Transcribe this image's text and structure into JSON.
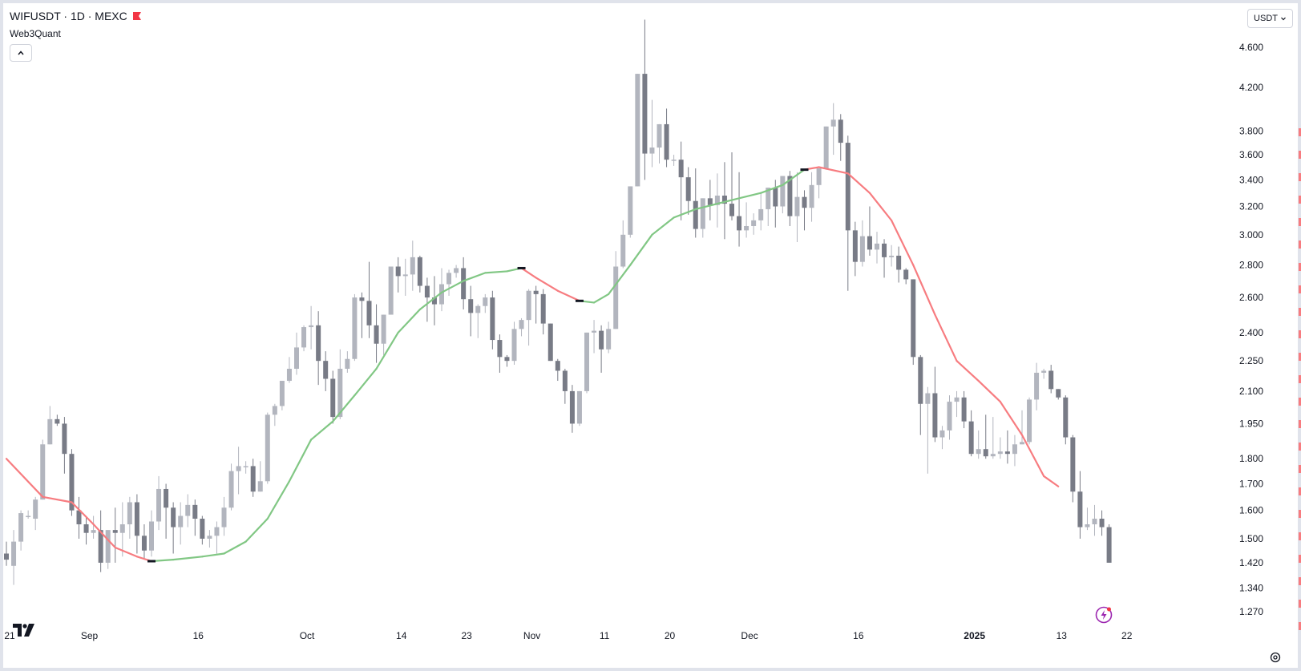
{
  "header": {
    "symbol": "WIFUSDT · 1D · MEXC",
    "indicator": "Web3Quant",
    "currency": "USDT"
  },
  "colors": {
    "up_candle": "#b2b5be",
    "down_candle": "#787b86",
    "ma_up": "#81c784",
    "ma_down": "#f77c80",
    "flag": "#f23645",
    "bolt": "#e040fb"
  },
  "icons": [
    "flag-icon",
    "chevron-up-icon",
    "chevron-down-icon",
    "tradingview-logo-icon",
    "lightning-icon",
    "settings-icon"
  ],
  "chart_data": {
    "type": "candlestick",
    "scale": "log",
    "ylim": [
      1.22,
      5.0
    ],
    "price_ticks": [
      "4.600",
      "4.200",
      "3.800",
      "3.600",
      "3.400",
      "3.200",
      "3.000",
      "2.800",
      "2.600",
      "2.400",
      "2.250",
      "2.100",
      "1.950",
      "1.800",
      "1.700",
      "1.600",
      "1.500",
      "1.420",
      "1.340",
      "1.270"
    ],
    "time_ticks": [
      {
        "label": "21",
        "day": 0
      },
      {
        "label": "Sep",
        "day": 11
      },
      {
        "label": "16",
        "day": 26
      },
      {
        "label": "Oct",
        "day": 41
      },
      {
        "label": "14",
        "day": 54
      },
      {
        "label": "23",
        "day": 63
      },
      {
        "label": "Nov",
        "day": 72
      },
      {
        "label": "11",
        "day": 82
      },
      {
        "label": "20",
        "day": 91
      },
      {
        "label": "Dec",
        "day": 102
      },
      {
        "label": "16",
        "day": 117
      },
      {
        "label": "2025",
        "day": 133,
        "bold": true
      },
      {
        "label": "13",
        "day": 145
      },
      {
        "label": "22",
        "day": 154
      }
    ],
    "candles": [
      [
        1.45,
        1.49,
        1.43,
        1.41
      ],
      [
        1.41,
        1.53,
        1.49,
        1.35
      ],
      [
        1.49,
        1.6,
        1.59,
        1.46
      ],
      [
        1.58,
        1.6,
        1.58,
        1.57
      ],
      [
        1.57,
        1.65,
        1.64,
        1.53
      ],
      [
        1.64,
        1.88,
        1.86,
        1.64
      ],
      [
        1.86,
        2.03,
        1.97,
        1.86
      ],
      [
        1.97,
        1.99,
        1.95,
        1.94
      ],
      [
        1.95,
        1.98,
        1.82,
        1.74
      ],
      [
        1.82,
        1.84,
        1.6,
        1.58
      ],
      [
        1.6,
        1.65,
        1.55,
        1.5
      ],
      [
        1.55,
        1.58,
        1.52,
        1.48
      ],
      [
        1.52,
        1.58,
        1.53,
        1.5
      ],
      [
        1.53,
        1.6,
        1.42,
        1.39
      ],
      [
        1.42,
        1.5,
        1.53,
        1.4
      ],
      [
        1.53,
        1.61,
        1.52,
        1.42
      ],
      [
        1.52,
        1.63,
        1.55,
        1.44
      ],
      [
        1.55,
        1.65,
        1.63,
        1.5
      ],
      [
        1.63,
        1.66,
        1.51,
        1.45
      ],
      [
        1.51,
        1.55,
        1.46,
        1.43
      ],
      [
        1.46,
        1.6,
        1.56,
        1.44
      ],
      [
        1.56,
        1.73,
        1.68,
        1.53
      ],
      [
        1.68,
        1.7,
        1.61,
        1.5
      ],
      [
        1.61,
        1.63,
        1.54,
        1.45
      ],
      [
        1.54,
        1.63,
        1.58,
        1.48
      ],
      [
        1.58,
        1.66,
        1.62,
        1.54
      ],
      [
        1.62,
        1.64,
        1.57,
        1.51
      ],
      [
        1.57,
        1.58,
        1.5,
        1.48
      ],
      [
        1.5,
        1.53,
        1.51,
        1.47
      ],
      [
        1.51,
        1.56,
        1.54,
        1.45
      ],
      [
        1.54,
        1.65,
        1.61,
        1.51
      ],
      [
        1.61,
        1.78,
        1.75,
        1.6
      ],
      [
        1.75,
        1.85,
        1.77,
        1.66
      ],
      [
        1.77,
        1.79,
        1.77,
        1.74
      ],
      [
        1.77,
        1.8,
        1.67,
        1.65
      ],
      [
        1.67,
        1.79,
        1.71,
        1.67
      ],
      [
        1.71,
        2.0,
        1.99,
        1.7
      ],
      [
        1.99,
        2.04,
        2.03,
        1.94
      ],
      [
        2.03,
        2.14,
        2.15,
        2.01
      ],
      [
        2.15,
        2.27,
        2.21,
        2.14
      ],
      [
        2.21,
        2.4,
        2.32,
        2.18
      ],
      [
        2.32,
        2.44,
        2.43,
        2.3
      ],
      [
        2.43,
        2.55,
        2.44,
        2.31
      ],
      [
        2.44,
        2.52,
        2.25,
        2.13
      ],
      [
        2.25,
        2.3,
        2.16,
        2.1
      ],
      [
        2.16,
        2.2,
        1.98,
        1.95
      ],
      [
        1.98,
        2.31,
        2.21,
        1.97
      ],
      [
        2.21,
        2.3,
        2.26,
        2.19
      ],
      [
        2.26,
        2.62,
        2.6,
        2.25
      ],
      [
        2.6,
        2.63,
        2.58,
        2.37
      ],
      [
        2.58,
        2.82,
        2.44,
        2.37
      ],
      [
        2.44,
        2.56,
        2.34,
        2.24
      ],
      [
        2.34,
        2.5,
        2.5,
        2.28
      ],
      [
        2.5,
        2.78,
        2.79,
        2.5
      ],
      [
        2.79,
        2.85,
        2.73,
        2.63
      ],
      [
        2.73,
        2.84,
        2.74,
        2.61
      ],
      [
        2.74,
        2.96,
        2.85,
        2.64
      ],
      [
        2.85,
        2.86,
        2.67,
        2.63
      ],
      [
        2.67,
        2.72,
        2.6,
        2.46
      ],
      [
        2.6,
        2.73,
        2.56,
        2.44
      ],
      [
        2.56,
        2.78,
        2.68,
        2.52
      ],
      [
        2.68,
        2.77,
        2.75,
        2.61
      ],
      [
        2.75,
        2.8,
        2.78,
        2.72
      ],
      [
        2.78,
        2.85,
        2.59,
        2.53
      ],
      [
        2.59,
        2.67,
        2.51,
        2.38
      ],
      [
        2.51,
        2.56,
        2.55,
        2.37
      ],
      [
        2.55,
        2.62,
        2.6,
        2.51
      ],
      [
        2.6,
        2.64,
        2.36,
        2.31
      ],
      [
        2.36,
        2.39,
        2.27,
        2.19
      ],
      [
        2.27,
        2.28,
        2.25,
        2.22
      ],
      [
        2.25,
        2.46,
        2.42,
        2.23
      ],
      [
        2.42,
        2.48,
        2.47,
        2.38
      ],
      [
        2.47,
        2.65,
        2.64,
        2.33
      ],
      [
        2.64,
        2.67,
        2.62,
        2.45
      ],
      [
        2.62,
        2.65,
        2.45,
        2.39
      ],
      [
        2.45,
        2.4,
        2.25,
        2.25
      ],
      [
        2.25,
        2.26,
        2.2,
        2.15
      ],
      [
        2.2,
        2.21,
        2.1,
        2.04
      ],
      [
        2.1,
        2.13,
        1.95,
        1.91
      ],
      [
        1.95,
        2.1,
        2.1,
        1.94
      ],
      [
        2.1,
        2.4,
        2.4,
        2.09
      ],
      [
        2.4,
        2.47,
        2.41,
        2.29
      ],
      [
        2.41,
        2.44,
        2.31,
        2.19
      ],
      [
        2.31,
        2.46,
        2.42,
        2.29
      ],
      [
        2.42,
        2.89,
        2.79,
        2.42
      ],
      [
        2.79,
        3.1,
        3.0,
        2.78
      ],
      [
        3.0,
        3.22,
        3.35,
        2.98
      ],
      [
        3.35,
        4.28,
        4.33,
        3.35
      ],
      [
        4.33,
        4.9,
        3.61,
        3.4
      ],
      [
        3.61,
        4.08,
        3.66,
        3.5
      ],
      [
        3.66,
        3.8,
        3.86,
        3.53
      ],
      [
        3.86,
        4.0,
        3.56,
        3.5
      ],
      [
        3.56,
        3.6,
        3.56,
        3.51
      ],
      [
        3.56,
        3.71,
        3.42,
        3.1
      ],
      [
        3.42,
        3.5,
        3.24,
        3.14
      ],
      [
        3.24,
        3.49,
        3.04,
        2.98
      ],
      [
        3.04,
        3.12,
        3.26,
        2.98
      ],
      [
        3.26,
        3.4,
        3.21,
        3.1
      ],
      [
        3.21,
        3.45,
        3.28,
        3.05
      ],
      [
        3.28,
        3.54,
        3.22,
        2.97
      ],
      [
        3.22,
        3.62,
        3.13,
        3.1
      ],
      [
        3.13,
        3.46,
        3.03,
        2.92
      ],
      [
        3.03,
        3.23,
        3.06,
        2.98
      ],
      [
        3.06,
        3.15,
        3.1,
        3.0
      ],
      [
        3.1,
        3.3,
        3.18,
        3.03
      ],
      [
        3.18,
        3.3,
        3.34,
        3.06
      ],
      [
        3.34,
        3.4,
        3.2,
        3.05
      ],
      [
        3.2,
        3.43,
        3.43,
        3.15
      ],
      [
        3.43,
        3.47,
        3.13,
        3.06
      ],
      [
        3.13,
        3.46,
        3.27,
        2.95
      ],
      [
        3.27,
        3.32,
        3.19,
        3.03
      ],
      [
        3.19,
        3.46,
        3.36,
        3.09
      ],
      [
        3.36,
        3.4,
        3.49,
        3.26
      ],
      [
        3.49,
        3.76,
        3.84,
        3.48
      ],
      [
        3.84,
        4.05,
        3.9,
        3.6
      ],
      [
        3.9,
        3.95,
        3.7,
        3.55
      ],
      [
        3.7,
        3.76,
        3.03,
        2.64
      ],
      [
        3.03,
        3.09,
        2.82,
        2.73
      ],
      [
        2.82,
        3.1,
        2.99,
        2.79
      ],
      [
        2.99,
        3.2,
        2.9,
        2.86
      ],
      [
        2.9,
        3.02,
        2.94,
        2.81
      ],
      [
        2.94,
        2.97,
        2.85,
        2.72
      ],
      [
        2.85,
        2.93,
        2.86,
        2.79
      ],
      [
        2.86,
        2.92,
        2.77,
        2.69
      ],
      [
        2.77,
        2.78,
        2.71,
        2.68
      ],
      [
        2.71,
        2.7,
        2.27,
        2.23
      ],
      [
        2.27,
        2.28,
        2.04,
        1.9
      ],
      [
        2.04,
        2.12,
        2.09,
        1.74
      ],
      [
        2.09,
        2.22,
        1.89,
        1.87
      ],
      [
        1.89,
        1.94,
        1.92,
        1.84
      ],
      [
        1.92,
        2.08,
        2.05,
        1.88
      ],
      [
        2.05,
        2.1,
        2.07,
        1.98
      ],
      [
        2.07,
        2.1,
        1.96,
        1.93
      ],
      [
        1.96,
        2.01,
        1.82,
        1.81
      ],
      [
        1.82,
        1.92,
        1.84,
        1.8
      ],
      [
        1.84,
        1.99,
        1.81,
        1.8
      ],
      [
        1.81,
        1.98,
        1.82,
        1.8
      ],
      [
        1.82,
        1.89,
        1.83,
        1.8
      ],
      [
        1.83,
        1.92,
        1.82,
        1.78
      ],
      [
        1.82,
        1.9,
        1.86,
        1.77
      ],
      [
        1.86,
        2.01,
        1.87,
        1.86
      ],
      [
        1.87,
        2.07,
        2.06,
        1.86
      ],
      [
        2.06,
        2.24,
        2.19,
        2.01
      ],
      [
        2.19,
        2.21,
        2.2,
        2.16
      ],
      [
        2.2,
        2.23,
        2.11,
        2.09
      ],
      [
        2.11,
        2.11,
        2.07,
        2.06
      ],
      [
        2.07,
        2.08,
        1.89,
        1.86
      ],
      [
        1.89,
        1.9,
        1.67,
        1.63
      ],
      [
        1.67,
        1.75,
        1.54,
        1.5
      ],
      [
        1.54,
        1.61,
        1.55,
        1.53
      ],
      [
        1.55,
        1.62,
        1.57,
        1.51
      ],
      [
        1.57,
        1.6,
        1.54,
        1.51
      ],
      [
        1.54,
        1.55,
        1.42,
        1.42
      ]
    ],
    "ma": [
      [
        0,
        1.8,
        "down"
      ],
      [
        5,
        1.65,
        "down"
      ],
      [
        9,
        1.63,
        "down"
      ],
      [
        12,
        1.55,
        "down"
      ],
      [
        15,
        1.47,
        "down"
      ],
      [
        18,
        1.44,
        "down"
      ],
      [
        20,
        1.425,
        "down"
      ],
      [
        23,
        1.43,
        "up"
      ],
      [
        27,
        1.44,
        "up"
      ],
      [
        30,
        1.45,
        "up"
      ],
      [
        33,
        1.49,
        "up"
      ],
      [
        36,
        1.57,
        "up"
      ],
      [
        39,
        1.71,
        "up"
      ],
      [
        42,
        1.88,
        "up"
      ],
      [
        45,
        1.96,
        "up"
      ],
      [
        48,
        2.08,
        "up"
      ],
      [
        51,
        2.21,
        "up"
      ],
      [
        54,
        2.4,
        "up"
      ],
      [
        57,
        2.53,
        "up"
      ],
      [
        60,
        2.63,
        "up"
      ],
      [
        63,
        2.7,
        "up"
      ],
      [
        66,
        2.75,
        "up"
      ],
      [
        69,
        2.76,
        "up"
      ],
      [
        71,
        2.78,
        "up"
      ],
      [
        73,
        2.72,
        "down"
      ],
      [
        76,
        2.64,
        "down"
      ],
      [
        79,
        2.58,
        "down"
      ],
      [
        81,
        2.57,
        "up"
      ],
      [
        83,
        2.62,
        "up"
      ],
      [
        86,
        2.8,
        "up"
      ],
      [
        89,
        3.0,
        "up"
      ],
      [
        92,
        3.12,
        "up"
      ],
      [
        95,
        3.18,
        "up"
      ],
      [
        98,
        3.22,
        "up"
      ],
      [
        101,
        3.26,
        "up"
      ],
      [
        104,
        3.3,
        "up"
      ],
      [
        107,
        3.36,
        "up"
      ],
      [
        110,
        3.48,
        "up"
      ],
      [
        112,
        3.5,
        "down"
      ],
      [
        116,
        3.45,
        "down"
      ],
      [
        119,
        3.3,
        "down"
      ],
      [
        122,
        3.1,
        "down"
      ],
      [
        125,
        2.8,
        "down"
      ],
      [
        128,
        2.5,
        "down"
      ],
      [
        131,
        2.25,
        "down"
      ],
      [
        134,
        2.15,
        "down"
      ],
      [
        137,
        2.05,
        "down"
      ],
      [
        140,
        1.9,
        "down"
      ],
      [
        143,
        1.73,
        "down"
      ],
      [
        145,
        1.69,
        "down"
      ]
    ]
  }
}
